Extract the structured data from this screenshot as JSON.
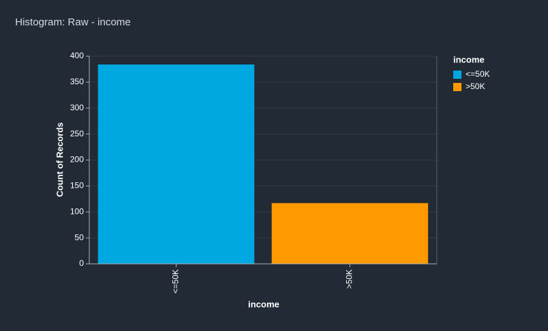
{
  "chart_data": {
    "type": "bar",
    "title": "Histogram: Raw - income",
    "x_label": "income",
    "y_label": "Count of Records",
    "legend_title": "income",
    "categories": [
      "<=50K",
      ">50K"
    ],
    "values": [
      384,
      117
    ],
    "colors": [
      "#00a8e1",
      "#ff9900"
    ],
    "ylim": [
      0,
      400
    ],
    "yticks": [
      0,
      50,
      100,
      150,
      200,
      250,
      300,
      350,
      400
    ],
    "grid": true,
    "legend": "right"
  }
}
